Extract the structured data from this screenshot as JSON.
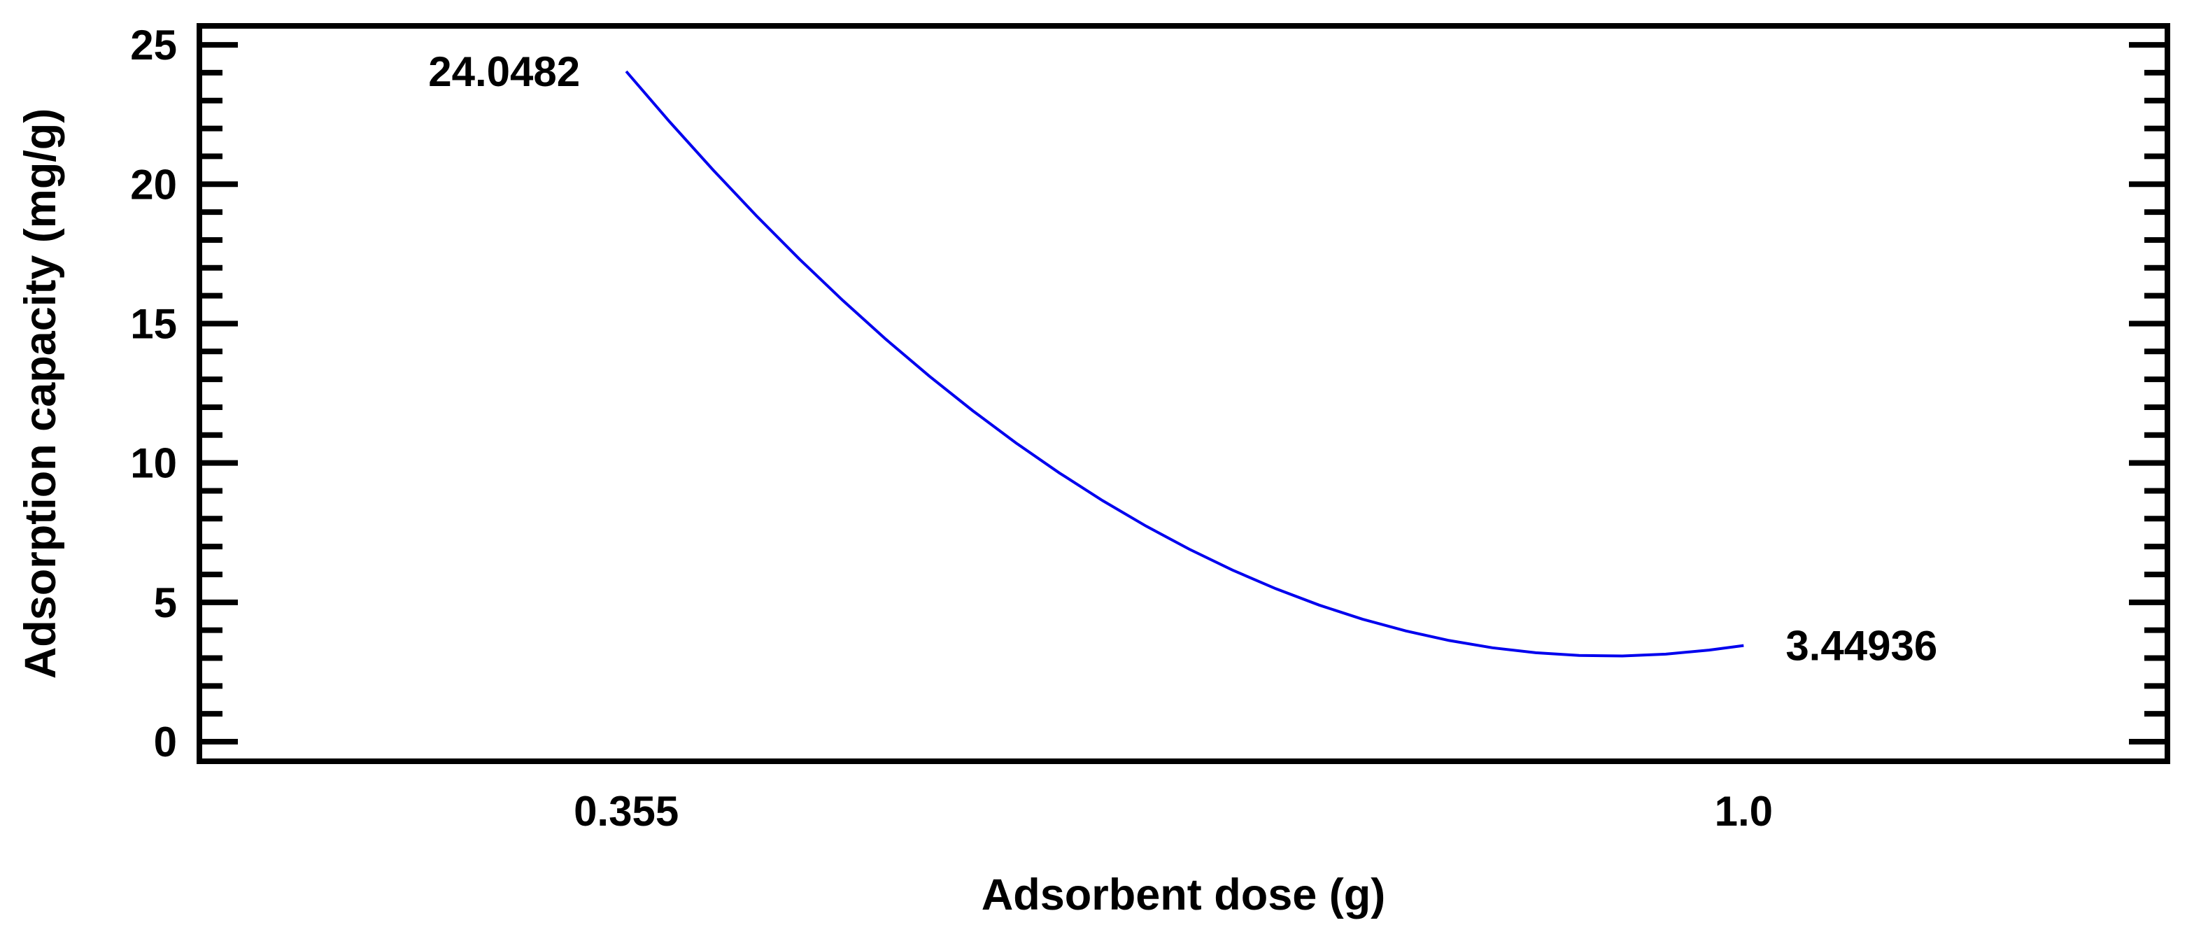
{
  "figure": {
    "background": "#ffffff"
  },
  "chart_data": {
    "type": "line",
    "title": "",
    "xlabel": "Adsorbent dose (g)",
    "ylabel": "Adsorption capacity (mg/g)",
    "xlim": [
      0.1086,
      1.2446
    ],
    "ylim": [
      -0.703,
      25.68
    ],
    "x_ticks": [
      0.355,
      1.0
    ],
    "x_tick_labels": [
      "0.355",
      "1.0"
    ],
    "y_major_ticks": [
      0,
      5,
      10,
      15,
      20,
      25
    ],
    "y_tick_labels": [
      "0",
      "5",
      "10",
      "15",
      "20",
      "25"
    ],
    "y_minor_tick_step": 1,
    "grid": false,
    "frame": true,
    "legend": "none",
    "axis_color": "#000000",
    "line_color": "#0000EE",
    "series": [
      {
        "name": "adsorption-capacity-main-effect",
        "x": [
          0.355,
          0.38,
          0.405,
          0.43,
          0.455,
          0.48,
          0.505,
          0.53,
          0.555,
          0.58,
          0.605,
          0.63,
          0.655,
          0.68,
          0.705,
          0.73,
          0.755,
          0.78,
          0.805,
          0.83,
          0.855,
          0.88,
          0.905,
          0.93,
          0.955,
          0.98,
          1.0
        ],
        "y": [
          24.0482,
          22.244,
          20.519,
          18.874,
          17.311,
          15.829,
          14.429,
          13.11,
          11.873,
          10.716,
          9.642,
          8.648,
          7.736,
          6.905,
          6.156,
          5.488,
          4.901,
          4.396,
          3.973,
          3.63,
          3.369,
          3.19,
          3.092,
          3.075,
          3.14,
          3.287,
          3.44936
        ]
      }
    ],
    "annotations": [
      {
        "text": "24.0482",
        "x": 0.355,
        "y": 24.0482,
        "side": "left"
      },
      {
        "text": "3.44936",
        "x": 1.0,
        "y": 3.44936,
        "side": "right"
      }
    ]
  }
}
